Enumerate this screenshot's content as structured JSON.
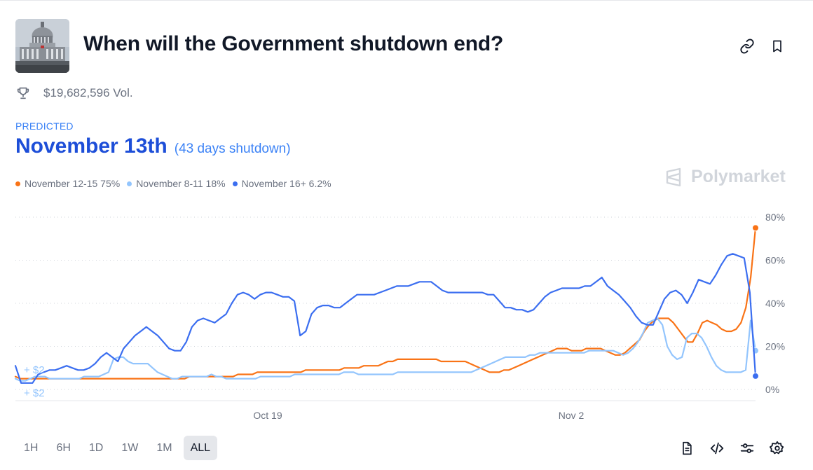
{
  "market": {
    "title": "When will the Government shutdown end?",
    "volume": "$19,682,596 Vol.",
    "thumbnail_icon": "capitol-building-image"
  },
  "header_actions": {
    "link_icon": "link-icon",
    "bookmark_icon": "bookmark-icon"
  },
  "prediction": {
    "label": "PREDICTED",
    "value": "November 13th",
    "detail": "(43 days shutdown)"
  },
  "legend": [
    {
      "label": "November 12-15 75%",
      "color": "#f97316"
    },
    {
      "label": "November 8-11 18%",
      "color": "#93c5fd"
    },
    {
      "label": "November 16+ 6.2%",
      "color": "#3b6ef0"
    }
  ],
  "brand": {
    "name": "Polymarket"
  },
  "chart_data": {
    "type": "line",
    "x_tick_labels": [
      "Oct 19",
      "Nov 2"
    ],
    "y_tick_labels": [
      "80%",
      "60%",
      "40%",
      "20%",
      "0%"
    ],
    "ylim": [
      0,
      80
    ],
    "grid": true,
    "trade_annotations": [
      "+ $2",
      "+ $2"
    ],
    "series": [
      {
        "name": "November 12-15",
        "color": "#f97316",
        "values": [
          6,
          5,
          5,
          5,
          5,
          5,
          5,
          5,
          5,
          5,
          5,
          5,
          5,
          5,
          5,
          5,
          5,
          5,
          5,
          5,
          5,
          5,
          5,
          5,
          5,
          5,
          5,
          5,
          5,
          5,
          5,
          5,
          5,
          5,
          5,
          5,
          6,
          6,
          6,
          6,
          6,
          6,
          6,
          6,
          6,
          6,
          7,
          7,
          7,
          7,
          8,
          8,
          8,
          8,
          8,
          8,
          8,
          8,
          8,
          8,
          9,
          9,
          9,
          9,
          9,
          9,
          9,
          9,
          10,
          10,
          10,
          10,
          11,
          11,
          11,
          11,
          12,
          13,
          13,
          14,
          14,
          14,
          14,
          14,
          14,
          14,
          14,
          14,
          13,
          13,
          13,
          13,
          13,
          13,
          12,
          11,
          10,
          9,
          8,
          8,
          8,
          9,
          9,
          10,
          11,
          12,
          13,
          14,
          15,
          16,
          17,
          18,
          19,
          19,
          19,
          18,
          18,
          18,
          19,
          19,
          19,
          19,
          18,
          17,
          16,
          16,
          17,
          19,
          21,
          23,
          27,
          30,
          32,
          33,
          33,
          33,
          31,
          28,
          25,
          22,
          22,
          26,
          31,
          32,
          31,
          30,
          28,
          27,
          27,
          28,
          31,
          38,
          52,
          75
        ]
      },
      {
        "name": "November 8-11",
        "color": "#93c5fd",
        "values": [
          5,
          4,
          4,
          5,
          6,
          6,
          6,
          5,
          5,
          5,
          5,
          5,
          5,
          5,
          6,
          6,
          6,
          6,
          7,
          8,
          14,
          15,
          15,
          13,
          12,
          12,
          12,
          12,
          10,
          8,
          7,
          6,
          5,
          5,
          6,
          6,
          6,
          6,
          6,
          6,
          7,
          6,
          6,
          5,
          5,
          5,
          5,
          5,
          5,
          5,
          6,
          6,
          6,
          6,
          6,
          6,
          6,
          7,
          7,
          7,
          7,
          7,
          7,
          7,
          7,
          7,
          7,
          8,
          8,
          8,
          7,
          7,
          7,
          7,
          7,
          7,
          7,
          7,
          8,
          8,
          8,
          8,
          8,
          8,
          8,
          8,
          8,
          8,
          8,
          8,
          8,
          8,
          8,
          8,
          9,
          10,
          11,
          12,
          13,
          14,
          15,
          15,
          15,
          15,
          15,
          16,
          16,
          17,
          17,
          17,
          17,
          17,
          17,
          17,
          17,
          17,
          17,
          18,
          18,
          18,
          18,
          18,
          18,
          17,
          16,
          17,
          19,
          22,
          26,
          31,
          32,
          33,
          30,
          20,
          16,
          14,
          15,
          24,
          26,
          26,
          24,
          20,
          15,
          11,
          9,
          8,
          8,
          8,
          8,
          9,
          32,
          18
        ]
      },
      {
        "name": "November 16+",
        "color": "#3b6ef0",
        "values": [
          11,
          3,
          3,
          3,
          7,
          8,
          9,
          9,
          10,
          11,
          10,
          9,
          9,
          10,
          12,
          15,
          17,
          15,
          13,
          19,
          22,
          25,
          27,
          29,
          27,
          25,
          22,
          19,
          18,
          18,
          22,
          29,
          32,
          33,
          32,
          31,
          33,
          35,
          40,
          44,
          45,
          44,
          42,
          44,
          45,
          45,
          44,
          43,
          43,
          41,
          25,
          27,
          35,
          38,
          39,
          39,
          38,
          38,
          40,
          42,
          44,
          44,
          44,
          44,
          45,
          46,
          47,
          48,
          48,
          48,
          49,
          50,
          50,
          50,
          48,
          46,
          45,
          45,
          45,
          45,
          45,
          45,
          45,
          44,
          44,
          41,
          38,
          38,
          37,
          37,
          36,
          37,
          40,
          43,
          45,
          46,
          47,
          47,
          47,
          47,
          48,
          48,
          50,
          52,
          48,
          46,
          44,
          41,
          38,
          34,
          31,
          30,
          30,
          36,
          42,
          45,
          46,
          44,
          40,
          45,
          51,
          50,
          49,
          53,
          58,
          62,
          63,
          62,
          61,
          45,
          6.2
        ]
      }
    ]
  },
  "time_ranges": [
    {
      "label": "1H",
      "active": false
    },
    {
      "label": "6H",
      "active": false
    },
    {
      "label": "1D",
      "active": false
    },
    {
      "label": "1W",
      "active": false
    },
    {
      "label": "1M",
      "active": false
    },
    {
      "label": "ALL",
      "active": true
    }
  ],
  "toolbar_icons": [
    "document-icon",
    "embed-code-icon",
    "sliders-icon",
    "settings-gear-icon"
  ]
}
